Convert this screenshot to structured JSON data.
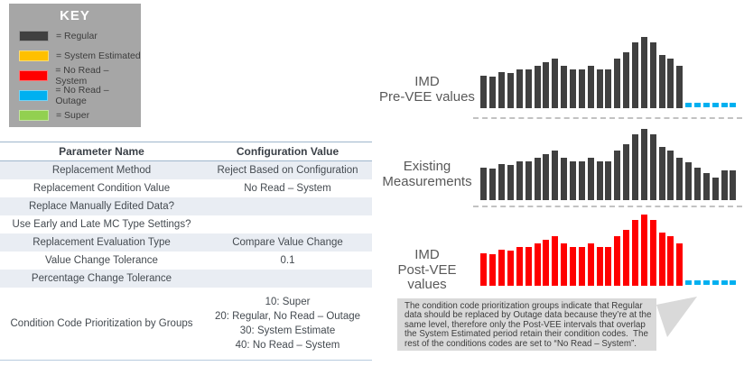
{
  "key": {
    "title": "KEY",
    "items": [
      {
        "label": "= Regular",
        "color": "#404040"
      },
      {
        "label": "= System Estimated",
        "color": "#FFC000"
      },
      {
        "label": "= No Read – System",
        "color": "#FF0000"
      },
      {
        "label": "= No Read – Outage",
        "color": "#00B0F0"
      },
      {
        "label": "= Super",
        "color": "#92D050"
      }
    ]
  },
  "table": {
    "headers": [
      "Parameter Name",
      "Configuration Value"
    ],
    "rows": [
      {
        "name": "Replacement Method",
        "value": "Reject Based on Configuration"
      },
      {
        "name": "Replacement Condition Value",
        "value": "No Read – System"
      },
      {
        "name": "Replace Manually Edited Data?",
        "value": ""
      },
      {
        "name": "Use Early and Late MC Type Settings?",
        "value": ""
      },
      {
        "name": "Replacement Evaluation Type",
        "value": "Compare Value Change"
      },
      {
        "name": "Value Change Tolerance",
        "value": "0.1"
      },
      {
        "name": "Percentage Change Tolerance",
        "value": ""
      },
      {
        "name": "Condition Code Prioritization by Groups",
        "value_lines": [
          "10: Super",
          "20: Regular, No Read – Outage",
          "30: System Estimate",
          "40: No Read – System"
        ]
      }
    ]
  },
  "chart_data": [
    {
      "type": "bar",
      "name": "IMD Pre-VEE values",
      "label_lines": [
        "IMD",
        "Pre-VEE values"
      ],
      "bar_color": "#404040",
      "outage_color": "#00B0F0",
      "total_slots": 29,
      "trailing_outage_dashes": 6,
      "values": [
        36,
        35,
        40,
        39,
        43,
        43,
        47,
        51,
        55,
        47,
        43,
        43,
        47,
        43,
        43,
        55,
        62,
        73,
        79,
        73,
        59,
        55,
        47
      ]
    },
    {
      "type": "bar",
      "name": "Existing Measurements",
      "label_lines": [
        "Existing",
        "Measurements"
      ],
      "bar_color": "#404040",
      "outage_color": "#00B0F0",
      "total_slots": 29,
      "trailing_outage_dashes": 0,
      "values": [
        36,
        35,
        40,
        39,
        43,
        43,
        47,
        51,
        55,
        47,
        43,
        43,
        47,
        43,
        43,
        55,
        62,
        73,
        79,
        73,
        59,
        55,
        47,
        42,
        36,
        30,
        25,
        33,
        33
      ]
    },
    {
      "type": "bar",
      "name": "IMD Post-VEE values",
      "label_lines": [
        "IMD",
        "Post-VEE values"
      ],
      "bar_color": "#FF0000",
      "outage_color": "#00B0F0",
      "total_slots": 29,
      "trailing_outage_dashes": 6,
      "values": [
        36,
        35,
        40,
        39,
        43,
        43,
        47,
        51,
        55,
        47,
        43,
        43,
        47,
        43,
        43,
        55,
        62,
        73,
        79,
        73,
        59,
        55,
        47
      ]
    }
  ],
  "callout": {
    "lines": [
      "The condition code prioritization groups indicate that Regular",
      "data should be replaced by Outage data because they’re at the",
      "same level, therefore only the Post-VEE intervals that overlap",
      "the System Estimated period retain their condition codes.  The",
      "rest of the conditions codes are set to “No Read – System”."
    ],
    "tail_color": "#d9d9d9"
  }
}
